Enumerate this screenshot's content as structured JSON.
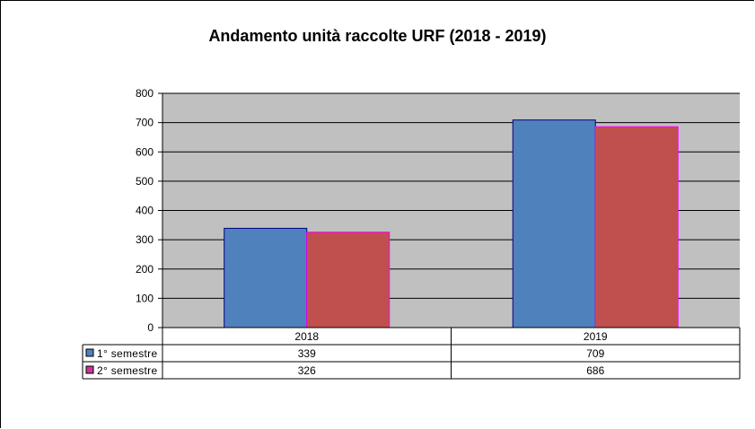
{
  "chart_data": {
    "type": "bar",
    "title": "Andamento unità raccolte URF (2018 - 2019)",
    "categories": [
      "2018",
      "2019"
    ],
    "series": [
      {
        "name": "1° semestre",
        "values": [
          339,
          709
        ]
      },
      {
        "name": "2° semestre",
        "values": [
          326,
          686
        ]
      }
    ],
    "ylim": [
      0,
      800
    ],
    "yticks": [
      0,
      100,
      200,
      300,
      400,
      500,
      600,
      700,
      800
    ],
    "grid": true,
    "legend": "data-table-left",
    "colors": {
      "plot_background": "#c0c0c0",
      "series_fill": [
        "#4f81bd",
        "#c0504d"
      ],
      "series_edge": [
        "#000080",
        "#ff00ff"
      ],
      "legend_key": [
        "#4f81bd",
        "#cc3399"
      ]
    }
  }
}
